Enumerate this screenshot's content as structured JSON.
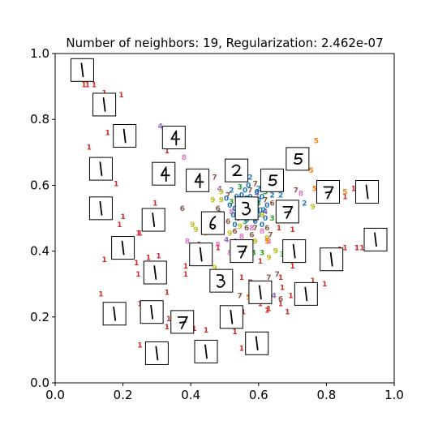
{
  "chart_data": {
    "type": "scatter",
    "title": "Number of neighbors: 19, Regularization: 2.462e-07",
    "xlabel": "",
    "ylabel": "",
    "xlim": [
      0.0,
      1.0
    ],
    "ylim": [
      0.0,
      1.0
    ],
    "x_ticks": [
      "0.0",
      "0.2",
      "0.4",
      "0.6",
      "0.8",
      "1.0"
    ],
    "y_ticks": [
      "0.0",
      "0.2",
      "0.4",
      "0.6",
      "0.8",
      "1.0"
    ],
    "grid": false,
    "legend": "none",
    "digit_colors": {
      "0": "#1f77b4",
      "1": "#d62728",
      "2": "#1f77b4",
      "3": "#2ca02c",
      "4": "#9467bd",
      "5": "#ff7f0e",
      "6": "#8c564b",
      "7": "#8c564b",
      "8": "#e377c2",
      "9": "#bcbd22"
    },
    "points": [
      {
        "x": 0.07,
        "y": 0.95,
        "label": "1"
      },
      {
        "x": 0.09,
        "y": 0.95,
        "label": "1"
      },
      {
        "x": 0.095,
        "y": 0.905,
        "label": "1"
      },
      {
        "x": 0.085,
        "y": 0.905,
        "label": "1"
      },
      {
        "x": 0.115,
        "y": 0.905,
        "label": "1"
      },
      {
        "x": 0.145,
        "y": 0.88,
        "label": "1"
      },
      {
        "x": 0.195,
        "y": 0.875,
        "label": "1"
      },
      {
        "x": 0.155,
        "y": 0.76,
        "label": "1"
      },
      {
        "x": 0.1,
        "y": 0.715,
        "label": "1"
      },
      {
        "x": 0.18,
        "y": 0.605,
        "label": "1"
      },
      {
        "x": 0.14,
        "y": 0.625,
        "label": "1"
      },
      {
        "x": 0.13,
        "y": 0.54,
        "label": "1"
      },
      {
        "x": 0.2,
        "y": 0.505,
        "label": "1"
      },
      {
        "x": 0.19,
        "y": 0.48,
        "label": "1"
      },
      {
        "x": 0.245,
        "y": 0.455,
        "label": "1"
      },
      {
        "x": 0.25,
        "y": 0.455,
        "label": "1"
      },
      {
        "x": 0.145,
        "y": 0.375,
        "label": "1"
      },
      {
        "x": 0.24,
        "y": 0.365,
        "label": "1"
      },
      {
        "x": 0.275,
        "y": 0.38,
        "label": "1"
      },
      {
        "x": 0.305,
        "y": 0.385,
        "label": "1"
      },
      {
        "x": 0.245,
        "y": 0.33,
        "label": "1"
      },
      {
        "x": 0.275,
        "y": 0.34,
        "label": "1"
      },
      {
        "x": 0.33,
        "y": 0.275,
        "label": "1"
      },
      {
        "x": 0.25,
        "y": 0.24,
        "label": "1"
      },
      {
        "x": 0.255,
        "y": 0.205,
        "label": "1"
      },
      {
        "x": 0.33,
        "y": 0.17,
        "label": "1"
      },
      {
        "x": 0.335,
        "y": 0.195,
        "label": "1"
      },
      {
        "x": 0.38,
        "y": 0.17,
        "label": "1"
      },
      {
        "x": 0.41,
        "y": 0.165,
        "label": "1"
      },
      {
        "x": 0.445,
        "y": 0.16,
        "label": "1"
      },
      {
        "x": 0.25,
        "y": 0.115,
        "label": "1"
      },
      {
        "x": 0.305,
        "y": 0.075,
        "label": "1"
      },
      {
        "x": 0.275,
        "y": 0.2,
        "label": "1"
      },
      {
        "x": 0.385,
        "y": 0.355,
        "label": "1"
      },
      {
        "x": 0.385,
        "y": 0.33,
        "label": "1"
      },
      {
        "x": 0.42,
        "y": 0.4,
        "label": "1"
      },
      {
        "x": 0.425,
        "y": 0.42,
        "label": "1"
      },
      {
        "x": 0.48,
        "y": 0.41,
        "label": "1"
      },
      {
        "x": 0.55,
        "y": 0.32,
        "label": "1"
      },
      {
        "x": 0.555,
        "y": 0.215,
        "label": "1"
      },
      {
        "x": 0.53,
        "y": 0.155,
        "label": "1"
      },
      {
        "x": 0.57,
        "y": 0.13,
        "label": "1"
      },
      {
        "x": 0.55,
        "y": 0.105,
        "label": "1"
      },
      {
        "x": 0.625,
        "y": 0.22,
        "label": "1"
      },
      {
        "x": 0.63,
        "y": 0.225,
        "label": "1"
      },
      {
        "x": 0.67,
        "y": 0.29,
        "label": "1"
      },
      {
        "x": 0.695,
        "y": 0.265,
        "label": "1"
      },
      {
        "x": 0.665,
        "y": 0.24,
        "label": "1"
      },
      {
        "x": 0.685,
        "y": 0.215,
        "label": "1"
      },
      {
        "x": 0.715,
        "y": 0.255,
        "label": "1"
      },
      {
        "x": 0.76,
        "y": 0.31,
        "label": "1"
      },
      {
        "x": 0.795,
        "y": 0.3,
        "label": "1"
      },
      {
        "x": 0.75,
        "y": 0.265,
        "label": "1"
      },
      {
        "x": 0.7,
        "y": 0.355,
        "label": "1"
      },
      {
        "x": 0.7,
        "y": 0.465,
        "label": "1"
      },
      {
        "x": 0.84,
        "y": 0.405,
        "label": "1"
      },
      {
        "x": 0.855,
        "y": 0.41,
        "label": "1"
      },
      {
        "x": 0.89,
        "y": 0.41,
        "label": "1"
      },
      {
        "x": 0.905,
        "y": 0.41,
        "label": "1"
      },
      {
        "x": 0.89,
        "y": 0.41,
        "label": "1"
      },
      {
        "x": 0.855,
        "y": 0.565,
        "label": "1"
      },
      {
        "x": 0.88,
        "y": 0.59,
        "label": "1"
      },
      {
        "x": 0.9,
        "y": 0.59,
        "label": "1"
      },
      {
        "x": 0.69,
        "y": 0.5,
        "label": "1"
      },
      {
        "x": 0.66,
        "y": 0.47,
        "label": "1"
      },
      {
        "x": 0.605,
        "y": 0.37,
        "label": "1"
      },
      {
        "x": 0.665,
        "y": 0.32,
        "label": "1"
      },
      {
        "x": 0.605,
        "y": 0.24,
        "label": "1"
      },
      {
        "x": 0.33,
        "y": 0.705,
        "label": "1"
      },
      {
        "x": 0.295,
        "y": 0.545,
        "label": "1"
      },
      {
        "x": 0.135,
        "y": 0.27,
        "label": "1"
      },
      {
        "x": 0.39,
        "y": 0.43,
        "label": "8"
      },
      {
        "x": 0.48,
        "y": 0.42,
        "label": "8"
      },
      {
        "x": 0.38,
        "y": 0.685,
        "label": "8"
      },
      {
        "x": 0.52,
        "y": 0.52,
        "label": "8"
      },
      {
        "x": 0.645,
        "y": 0.605,
        "label": "8"
      },
      {
        "x": 0.725,
        "y": 0.575,
        "label": "8"
      },
      {
        "x": 0.61,
        "y": 0.46,
        "label": "8"
      },
      {
        "x": 0.55,
        "y": 0.445,
        "label": "8"
      },
      {
        "x": 0.515,
        "y": 0.395,
        "label": "8"
      },
      {
        "x": 0.58,
        "y": 0.47,
        "label": "8"
      },
      {
        "x": 0.63,
        "y": 0.43,
        "label": "8"
      },
      {
        "x": 0.66,
        "y": 0.525,
        "label": "8"
      },
      {
        "x": 0.31,
        "y": 0.78,
        "label": "4"
      },
      {
        "x": 0.485,
        "y": 0.59,
        "label": "4"
      },
      {
        "x": 0.505,
        "y": 0.435,
        "label": "4"
      },
      {
        "x": 0.53,
        "y": 0.43,
        "label": "4"
      },
      {
        "x": 0.645,
        "y": 0.265,
        "label": "4"
      },
      {
        "x": 0.62,
        "y": 0.52,
        "label": "4"
      },
      {
        "x": 0.56,
        "y": 0.52,
        "label": "4"
      },
      {
        "x": 0.595,
        "y": 0.575,
        "label": "4"
      },
      {
        "x": 0.47,
        "y": 0.625,
        "label": "7"
      },
      {
        "x": 0.51,
        "y": 0.57,
        "label": "7"
      },
      {
        "x": 0.545,
        "y": 0.545,
        "label": "7"
      },
      {
        "x": 0.575,
        "y": 0.585,
        "label": "7"
      },
      {
        "x": 0.59,
        "y": 0.495,
        "label": "7"
      },
      {
        "x": 0.59,
        "y": 0.47,
        "label": "7"
      },
      {
        "x": 0.555,
        "y": 0.38,
        "label": "7"
      },
      {
        "x": 0.545,
        "y": 0.265,
        "label": "7"
      },
      {
        "x": 0.575,
        "y": 0.305,
        "label": "7"
      },
      {
        "x": 0.63,
        "y": 0.32,
        "label": "7"
      },
      {
        "x": 0.655,
        "y": 0.33,
        "label": "7"
      },
      {
        "x": 0.635,
        "y": 0.45,
        "label": "7"
      },
      {
        "x": 0.71,
        "y": 0.585,
        "label": "7"
      },
      {
        "x": 0.66,
        "y": 0.53,
        "label": "7"
      },
      {
        "x": 0.59,
        "y": 0.605,
        "label": "7"
      },
      {
        "x": 0.62,
        "y": 0.555,
        "label": "7"
      },
      {
        "x": 0.67,
        "y": 0.39,
        "label": "3"
      },
      {
        "x": 0.52,
        "y": 0.55,
        "label": "3"
      },
      {
        "x": 0.56,
        "y": 0.49,
        "label": "3"
      },
      {
        "x": 0.6,
        "y": 0.545,
        "label": "3"
      },
      {
        "x": 0.62,
        "y": 0.58,
        "label": "3"
      },
      {
        "x": 0.64,
        "y": 0.5,
        "label": "3"
      },
      {
        "x": 0.485,
        "y": 0.515,
        "label": "3"
      },
      {
        "x": 0.545,
        "y": 0.595,
        "label": "3"
      },
      {
        "x": 0.555,
        "y": 0.62,
        "label": "2"
      },
      {
        "x": 0.575,
        "y": 0.625,
        "label": "2"
      },
      {
        "x": 0.62,
        "y": 0.615,
        "label": "2"
      },
      {
        "x": 0.64,
        "y": 0.57,
        "label": "2"
      },
      {
        "x": 0.665,
        "y": 0.57,
        "label": "2"
      },
      {
        "x": 0.615,
        "y": 0.525,
        "label": "2"
      },
      {
        "x": 0.565,
        "y": 0.56,
        "label": "2"
      },
      {
        "x": 0.52,
        "y": 0.585,
        "label": "2"
      },
      {
        "x": 0.735,
        "y": 0.545,
        "label": "2"
      },
      {
        "x": 0.6,
        "y": 0.59,
        "label": "2"
      },
      {
        "x": 0.55,
        "y": 0.57,
        "label": "0"
      },
      {
        "x": 0.58,
        "y": 0.535,
        "label": "0"
      },
      {
        "x": 0.6,
        "y": 0.51,
        "label": "0"
      },
      {
        "x": 0.57,
        "y": 0.51,
        "label": "0"
      },
      {
        "x": 0.6,
        "y": 0.555,
        "label": "0"
      },
      {
        "x": 0.53,
        "y": 0.53,
        "label": "0"
      },
      {
        "x": 0.61,
        "y": 0.48,
        "label": "0"
      },
      {
        "x": 0.54,
        "y": 0.5,
        "label": "0"
      },
      {
        "x": 0.57,
        "y": 0.6,
        "label": "0"
      },
      {
        "x": 0.505,
        "y": 0.56,
        "label": "0"
      },
      {
        "x": 0.62,
        "y": 0.5,
        "label": "0"
      },
      {
        "x": 0.59,
        "y": 0.525,
        "label": "0"
      },
      {
        "x": 0.55,
        "y": 0.545,
        "label": "0"
      },
      {
        "x": 0.575,
        "y": 0.565,
        "label": "0"
      },
      {
        "x": 0.53,
        "y": 0.48,
        "label": "0"
      },
      {
        "x": 0.625,
        "y": 0.54,
        "label": "0"
      },
      {
        "x": 0.545,
        "y": 0.525,
        "label": "0"
      },
      {
        "x": 0.565,
        "y": 0.495,
        "label": "0"
      },
      {
        "x": 0.595,
        "y": 0.58,
        "label": "0"
      },
      {
        "x": 0.515,
        "y": 0.54,
        "label": "0"
      },
      {
        "x": 0.58,
        "y": 0.505,
        "label": "0"
      },
      {
        "x": 0.56,
        "y": 0.585,
        "label": "0"
      },
      {
        "x": 0.605,
        "y": 0.525,
        "label": "0"
      },
      {
        "x": 0.535,
        "y": 0.565,
        "label": "0"
      },
      {
        "x": 0.57,
        "y": 0.545,
        "label": "0"
      },
      {
        "x": 0.59,
        "y": 0.49,
        "label": "0"
      },
      {
        "x": 0.55,
        "y": 0.505,
        "label": "0"
      },
      {
        "x": 0.61,
        "y": 0.565,
        "label": "0"
      },
      {
        "x": 0.525,
        "y": 0.51,
        "label": "0"
      },
      {
        "x": 0.585,
        "y": 0.555,
        "label": "0"
      },
      {
        "x": 0.375,
        "y": 0.53,
        "label": "6"
      },
      {
        "x": 0.51,
        "y": 0.49,
        "label": "6"
      },
      {
        "x": 0.565,
        "y": 0.47,
        "label": "6"
      },
      {
        "x": 0.53,
        "y": 0.46,
        "label": "6"
      },
      {
        "x": 0.46,
        "y": 0.47,
        "label": "6"
      },
      {
        "x": 0.48,
        "y": 0.53,
        "label": "6"
      },
      {
        "x": 0.625,
        "y": 0.47,
        "label": "6"
      },
      {
        "x": 0.64,
        "y": 0.545,
        "label": "6"
      },
      {
        "x": 0.58,
        "y": 0.45,
        "label": "6"
      },
      {
        "x": 0.405,
        "y": 0.48,
        "label": "9"
      },
      {
        "x": 0.415,
        "y": 0.465,
        "label": "9"
      },
      {
        "x": 0.465,
        "y": 0.555,
        "label": "9"
      },
      {
        "x": 0.49,
        "y": 0.555,
        "label": "9"
      },
      {
        "x": 0.445,
        "y": 0.455,
        "label": "9"
      },
      {
        "x": 0.47,
        "y": 0.35,
        "label": "9"
      },
      {
        "x": 0.515,
        "y": 0.455,
        "label": "9"
      },
      {
        "x": 0.545,
        "y": 0.475,
        "label": "9"
      },
      {
        "x": 0.49,
        "y": 0.58,
        "label": "9"
      },
      {
        "x": 0.625,
        "y": 0.44,
        "label": "9"
      },
      {
        "x": 0.65,
        "y": 0.4,
        "label": "9"
      },
      {
        "x": 0.76,
        "y": 0.535,
        "label": "9"
      },
      {
        "x": 0.61,
        "y": 0.51,
        "label": "9"
      },
      {
        "x": 0.77,
        "y": 0.735,
        "label": "5"
      },
      {
        "x": 0.755,
        "y": 0.645,
        "label": "5"
      },
      {
        "x": 0.715,
        "y": 0.67,
        "label": "5"
      },
      {
        "x": 0.53,
        "y": 0.38,
        "label": "5"
      },
      {
        "x": 0.57,
        "y": 0.26,
        "label": "5"
      },
      {
        "x": 0.625,
        "y": 0.43,
        "label": "5"
      },
      {
        "x": 0.765,
        "y": 0.59,
        "label": "5"
      },
      {
        "x": 0.855,
        "y": 0.58,
        "label": "5"
      },
      {
        "x": 0.665,
        "y": 0.255,
        "label": "6"
      },
      {
        "x": 0.575,
        "y": 0.41,
        "label": "3"
      },
      {
        "x": 0.585,
        "y": 0.395,
        "label": "3"
      },
      {
        "x": 0.61,
        "y": 0.395,
        "label": "3"
      },
      {
        "x": 0.63,
        "y": 0.38,
        "label": "9"
      },
      {
        "x": 0.59,
        "y": 0.43,
        "label": "9"
      },
      {
        "x": 0.545,
        "y": 0.425,
        "label": "8"
      }
    ],
    "thumbnails": [
      {
        "x": 0.08,
        "y": 0.95,
        "digit": "1"
      },
      {
        "x": 0.145,
        "y": 0.845,
        "digit": "1"
      },
      {
        "x": 0.205,
        "y": 0.75,
        "digit": "1"
      },
      {
        "x": 0.35,
        "y": 0.745,
        "digit": "4"
      },
      {
        "x": 0.135,
        "y": 0.65,
        "digit": "1"
      },
      {
        "x": 0.32,
        "y": 0.635,
        "digit": "4"
      },
      {
        "x": 0.42,
        "y": 0.615,
        "digit": "4"
      },
      {
        "x": 0.535,
        "y": 0.645,
        "digit": "2"
      },
      {
        "x": 0.64,
        "y": 0.615,
        "digit": "5"
      },
      {
        "x": 0.715,
        "y": 0.68,
        "digit": "5"
      },
      {
        "x": 0.135,
        "y": 0.53,
        "digit": "1"
      },
      {
        "x": 0.29,
        "y": 0.495,
        "digit": "1"
      },
      {
        "x": 0.465,
        "y": 0.485,
        "digit": "6"
      },
      {
        "x": 0.565,
        "y": 0.53,
        "digit": "3"
      },
      {
        "x": 0.685,
        "y": 0.52,
        "digit": "7"
      },
      {
        "x": 0.805,
        "y": 0.58,
        "digit": "7"
      },
      {
        "x": 0.92,
        "y": 0.58,
        "digit": "1"
      },
      {
        "x": 0.2,
        "y": 0.41,
        "digit": "1"
      },
      {
        "x": 0.43,
        "y": 0.39,
        "digit": "1"
      },
      {
        "x": 0.55,
        "y": 0.4,
        "digit": "7"
      },
      {
        "x": 0.705,
        "y": 0.4,
        "digit": "1"
      },
      {
        "x": 0.815,
        "y": 0.375,
        "digit": "1"
      },
      {
        "x": 0.945,
        "y": 0.435,
        "digit": "1"
      },
      {
        "x": 0.295,
        "y": 0.335,
        "digit": "1"
      },
      {
        "x": 0.49,
        "y": 0.31,
        "digit": "3"
      },
      {
        "x": 0.605,
        "y": 0.275,
        "digit": "1"
      },
      {
        "x": 0.74,
        "y": 0.27,
        "digit": "1"
      },
      {
        "x": 0.175,
        "y": 0.21,
        "digit": "1"
      },
      {
        "x": 0.285,
        "y": 0.215,
        "digit": "1"
      },
      {
        "x": 0.375,
        "y": 0.185,
        "digit": "7"
      },
      {
        "x": 0.52,
        "y": 0.2,
        "digit": "1"
      },
      {
        "x": 0.3,
        "y": 0.09,
        "digit": "1"
      },
      {
        "x": 0.445,
        "y": 0.095,
        "digit": "1"
      },
      {
        "x": 0.595,
        "y": 0.12,
        "digit": "1"
      }
    ]
  }
}
